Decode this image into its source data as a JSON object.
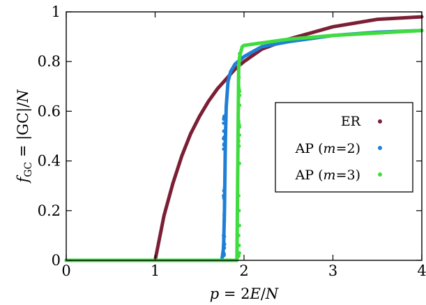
{
  "chart_data": {
    "type": "scatter",
    "xlabel": "p = 2E/N",
    "ylabel": "f_GC = |GC|/N",
    "xlim": [
      0,
      4
    ],
    "ylim": [
      0,
      1
    ],
    "x_ticks": [
      "0",
      "1",
      "2",
      "3",
      "4"
    ],
    "y_ticks": [
      "0",
      "0.2",
      "0.4",
      "0.6",
      "0.8",
      "1"
    ],
    "legend_position": "middle-right",
    "series": [
      {
        "name": "ER",
        "color": "#7b1f35",
        "description_points": [
          [
            0.0,
            0.0
          ],
          [
            1.0,
            0.0
          ],
          [
            1.1,
            0.18
          ],
          [
            1.2,
            0.31
          ],
          [
            1.3,
            0.42
          ],
          [
            1.4,
            0.51
          ],
          [
            1.5,
            0.58
          ],
          [
            1.6,
            0.64
          ],
          [
            1.7,
            0.69
          ],
          [
            1.8,
            0.73
          ],
          [
            1.9,
            0.77
          ],
          [
            2.0,
            0.8
          ],
          [
            2.2,
            0.85
          ],
          [
            2.5,
            0.89
          ],
          [
            3.0,
            0.94
          ],
          [
            3.5,
            0.97
          ],
          [
            4.0,
            0.98
          ]
        ]
      },
      {
        "name": "AP (m=2)",
        "color": "#1f7fd6",
        "description_points": [
          [
            0.0,
            0.0
          ],
          [
            1.75,
            0.0
          ],
          [
            1.77,
            0.05
          ],
          [
            1.78,
            0.2
          ],
          [
            1.79,
            0.48
          ],
          [
            1.8,
            0.62
          ],
          [
            1.82,
            0.72
          ],
          [
            1.85,
            0.76
          ],
          [
            1.9,
            0.79
          ],
          [
            2.0,
            0.82
          ],
          [
            2.2,
            0.86
          ],
          [
            2.5,
            0.88
          ],
          [
            3.0,
            0.905
          ],
          [
            3.5,
            0.918
          ],
          [
            4.0,
            0.925
          ]
        ],
        "scattered_y_at_transition": [
          0.26,
          0.25,
          0.16,
          0.1,
          0.07,
          0.05,
          0.03,
          0.02,
          0.47,
          0.49,
          0.52,
          0.58
        ]
      },
      {
        "name": "AP (m=3)",
        "color": "#3fdc3f",
        "description_points": [
          [
            0.0,
            0.0
          ],
          [
            1.92,
            0.0
          ],
          [
            1.94,
            0.78
          ],
          [
            1.95,
            0.82
          ],
          [
            1.98,
            0.86
          ],
          [
            2.0,
            0.865
          ],
          [
            2.2,
            0.875
          ],
          [
            2.5,
            0.89
          ],
          [
            3.0,
            0.905
          ],
          [
            3.5,
            0.915
          ],
          [
            4.0,
            0.925
          ]
        ],
        "scattered_y_at_transition": [
          0.48,
          0.46,
          0.39,
          0.26,
          0.2,
          0.14,
          0.1,
          0.06,
          0.03,
          0.02
        ]
      }
    ]
  },
  "legend": {
    "items": [
      {
        "label": "ER",
        "color": "#7b1f35"
      },
      {
        "label": "AP (m=2)",
        "color": "#1f7fd6"
      },
      {
        "label": "AP (m=3)",
        "color": "#3fdc3f"
      }
    ]
  }
}
